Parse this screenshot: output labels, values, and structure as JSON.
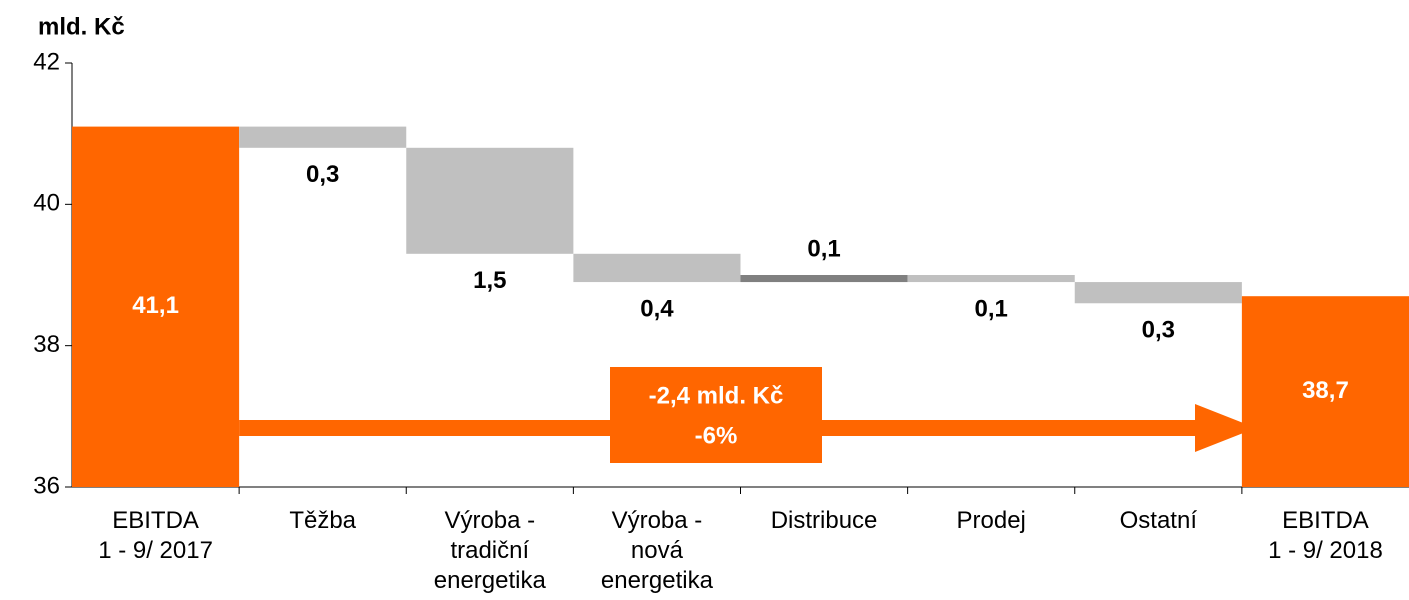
{
  "chart_data": {
    "type": "waterfall",
    "y_label": "mld. Kč",
    "categories": [
      "EBITDA\n1 - 9/ 2017",
      "Těžba",
      "Výroba -\ntradiční\nenergetika",
      "Výroba -\nnová\nenergetika",
      "Distribuce",
      "Prodej",
      "Ostatní",
      "EBITDA\n1 - 9/ 2018"
    ],
    "values": [
      41.1,
      -0.3,
      -1.5,
      -0.4,
      0.1,
      -0.1,
      -0.3,
      38.7
    ],
    "value_labels": [
      "41,1",
      "0,3",
      "1,5",
      "0,4",
      "0,1",
      "0,1",
      "0,3",
      "38,7"
    ],
    "totals": [
      true,
      false,
      false,
      false,
      false,
      false,
      false,
      true
    ],
    "colors": [
      "#ff6600",
      "#c0c0c0",
      "#c0c0c0",
      "#c0c0c0",
      "#808080",
      "#c0c0c0",
      "#c0c0c0",
      "#ff6600"
    ],
    "ylim": [
      36,
      42
    ],
    "yticks": [
      36,
      38,
      40,
      42
    ],
    "annotation": {
      "lines": [
        "-2,4 mld. Kč",
        "-6%"
      ],
      "color": "#ff6600"
    }
  }
}
